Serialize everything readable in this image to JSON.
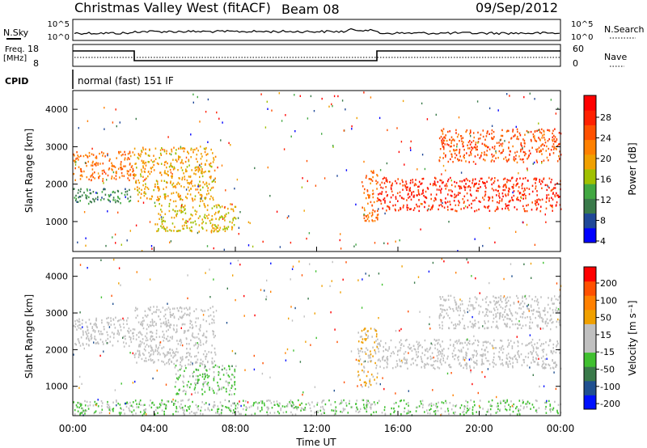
{
  "header": {
    "station": "Christmas Valley West (fitACF)",
    "beam": "Beam 08",
    "date": "09/Sep/2012"
  },
  "panels": {
    "nsky": {
      "left_label": "N.Sky",
      "right_label": "N.Search",
      "tick_top": "10^5",
      "tick_bottom": "10^0",
      "right_tick_top": "10^5",
      "right_tick_bottom": "10^0"
    },
    "freq": {
      "left_label_line1": "Freq.",
      "left_label_line2": "[MHz]",
      "right_label": "Nave",
      "left_ticks": [
        "18",
        "8"
      ],
      "right_ticks": [
        "60",
        "0"
      ]
    },
    "cpid": {
      "label": "CPID",
      "text": "normal (fast) 151 IF"
    }
  },
  "colorbars": {
    "power": {
      "label": "Power [dB]",
      "ticks": [
        "28",
        "24",
        "20",
        "16",
        "12",
        "8",
        "4"
      ],
      "colors": [
        "#0000ff",
        "#204898",
        "#3a7a4a",
        "#42a842",
        "#a0c000",
        "#f0a000",
        "#ff8000",
        "#ff5000",
        "#ff2000",
        "#ff0000"
      ]
    },
    "velocity": {
      "label": "Velocity [m s⁻¹]",
      "ticks": [
        "200",
        "100",
        "50",
        "15",
        "-15",
        "-50",
        "-100",
        "-200"
      ],
      "colors": [
        "#0010ff",
        "#205090",
        "#3a7a4a",
        "#40c030",
        "#c0c0c0",
        "#c0c0c0",
        "#f0a000",
        "#ff8000",
        "#ff5000",
        "#ff0000"
      ]
    }
  },
  "chart_data": [
    {
      "type": "heatmap",
      "title": "",
      "ylabel": "Slant Range [km]",
      "xlabel": "",
      "ylim": [
        200,
        4500
      ],
      "yticks": [
        1000,
        2000,
        3000,
        4000
      ],
      "quantity": "Power [dB]",
      "clim": [
        0,
        32
      ],
      "regions": [
        {
          "t": [
            0.0,
            3.0
          ],
          "r": [
            2100,
            2900
          ],
          "v": 22
        },
        {
          "t": [
            0.0,
            3.0
          ],
          "r": [
            1500,
            1900
          ],
          "v": 9
        },
        {
          "t": [
            3.0,
            7.0
          ],
          "r": [
            1550,
            3000
          ],
          "v": 18
        },
        {
          "t": [
            4.0,
            8.0
          ],
          "r": [
            750,
            1500
          ],
          "v": 16
        },
        {
          "t": [
            14.2,
            15.0
          ],
          "r": [
            1000,
            2400
          ],
          "v": 22
        },
        {
          "t": [
            15.0,
            24.0
          ],
          "r": [
            1300,
            2200
          ],
          "v": 27
        },
        {
          "t": [
            18.0,
            24.0
          ],
          "r": [
            2600,
            3500
          ],
          "v": 24
        }
      ]
    },
    {
      "type": "heatmap",
      "title": "",
      "ylabel": "Slant Range [km]",
      "xlabel": "Time UT",
      "ylim": [
        200,
        4500
      ],
      "yticks": [
        1000,
        2000,
        3000,
        4000
      ],
      "xticks": [
        "00:00",
        "04:00",
        "08:00",
        "12:00",
        "16:00",
        "20:00",
        "00:00"
      ],
      "quantity": "Velocity [m s⁻¹]",
      "clim": [
        -250,
        250
      ],
      "regions": [
        {
          "t": [
            0.0,
            3.0
          ],
          "r": [
            2100,
            2900
          ],
          "v": 0
        },
        {
          "t": [
            3.0,
            7.0
          ],
          "r": [
            1600,
            3200
          ],
          "v": 0
        },
        {
          "t": [
            5.0,
            8.0
          ],
          "r": [
            800,
            1600
          ],
          "v": -60
        },
        {
          "t": [
            0.0,
            24.0
          ],
          "r": [
            250,
            650
          ],
          "v": -50
        },
        {
          "t": [
            14.0,
            15.0
          ],
          "r": [
            1000,
            2600
          ],
          "v": 40
        },
        {
          "t": [
            15.0,
            24.0
          ],
          "r": [
            1500,
            2300
          ],
          "v": 0
        },
        {
          "t": [
            18.0,
            24.0
          ],
          "r": [
            2600,
            3500
          ],
          "v": 0
        }
      ]
    }
  ]
}
